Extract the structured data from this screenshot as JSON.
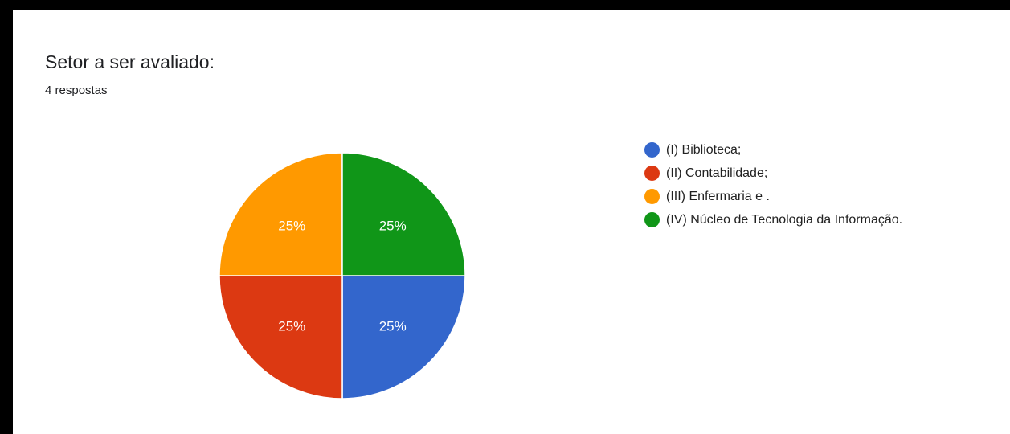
{
  "card": {
    "title": "Setor a ser avaliado:",
    "subtitle": "4 respostas"
  },
  "chart_data": {
    "type": "pie",
    "title": "Setor a ser avaliado:",
    "categories": [
      "(I) Biblioteca;",
      "(II) Contabilidade;",
      "(III) Enfermaria e .",
      "(IV) Núcleo de Tecnologia da Informação."
    ],
    "values": [
      25,
      25,
      25,
      25
    ],
    "labels": [
      "25%",
      "25%",
      "25%",
      "25%"
    ],
    "colors": [
      "#3366cc",
      "#dc3912",
      "#ff9900",
      "#109618"
    ],
    "legend": "right"
  }
}
